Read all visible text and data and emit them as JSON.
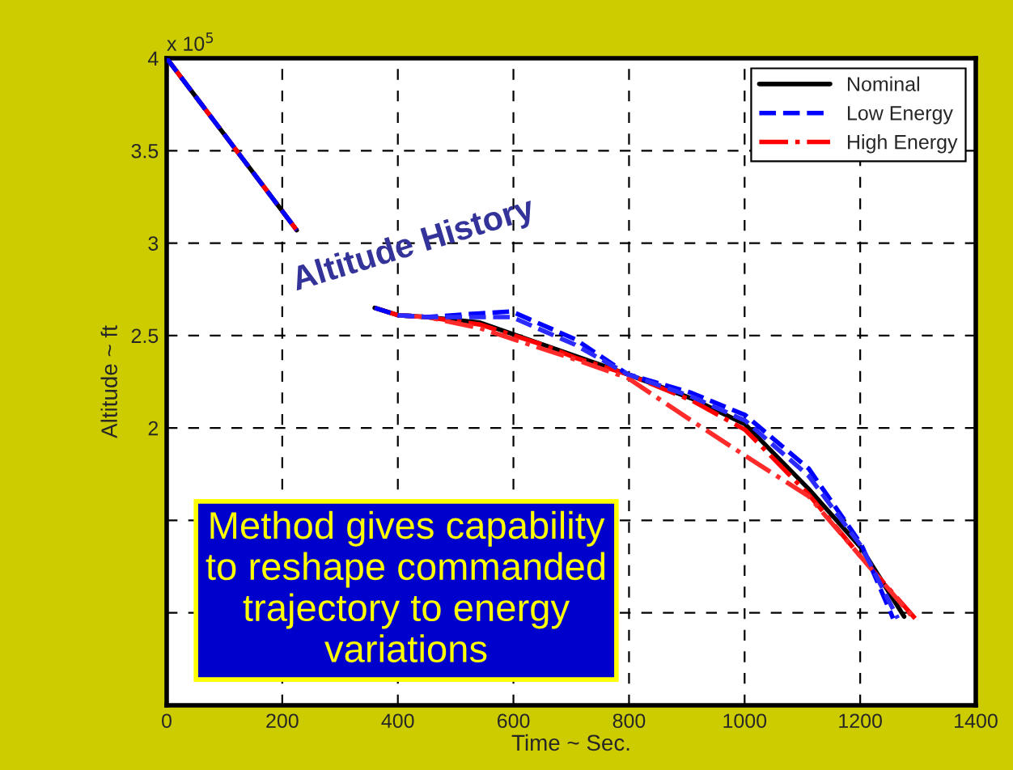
{
  "chart_data": {
    "type": "line",
    "xlabel": "Time ~ Sec.",
    "ylabel": "Altitude ~ ft",
    "xlim": [
      0,
      1400
    ],
    "xticks": [
      0,
      200,
      400,
      600,
      800,
      1000,
      1200,
      1400
    ],
    "ylim": [
      0.5,
      4
    ],
    "yticks": [
      {
        "value": 0.5,
        "label": null
      },
      {
        "value": 1,
        "label": null
      },
      {
        "value": 1.5,
        "label": null
      },
      2,
      2.5,
      3,
      3.5,
      4
    ],
    "grid": true,
    "legend": "top right",
    "annotations": [
      "x 10$^{5}$",
      "Altitude History",
      "Method gives capability to reshape commanded trajectory to energy variations"
    ],
    "series": [
      {
        "name": "Nominal",
        "color": "#000000",
        "line_style": "solid",
        "x": [
          0,
          225,
          300,
          360,
          400,
          450,
          542,
          707,
          798,
          908,
          1001,
          1111,
          1202,
          1276
        ],
        "values": [
          4,
          3.07,
          null,
          2.65,
          2.61,
          2.6,
          2.57,
          2.39,
          2.29,
          2.16,
          2.02,
          1.67,
          1.35,
          0.98
        ]
      },
      {
        "name": "Low Energy",
        "color": "#0000ff",
        "line_style": "dashed",
        "x": [
          0,
          225,
          300,
          360,
          400,
          450,
          542,
          597,
          707,
          798,
          908,
          1001,
          1111,
          1202,
          1257
        ],
        "values": [
          4,
          3.07,
          null,
          2.65,
          2.61,
          2.6,
          2.62,
          2.63,
          2.48,
          2.29,
          2.19,
          2.07,
          1.78,
          1.37,
          0.97
        ]
      },
      {
        "color": "#2b2bff",
        "line_style": "dashed",
        "x": [
          400,
          450,
          542,
          597,
          707,
          798,
          908,
          1001,
          1111,
          1202,
          1265
        ],
        "values": [
          2.61,
          2.6,
          2.6,
          2.6,
          2.45,
          2.29,
          2.17,
          2.04,
          1.74,
          1.36,
          0.97
        ]
      },
      {
        "name": "High Energy",
        "color": "#ff0000",
        "line_style": "dashdot",
        "x": [
          0,
          225,
          300,
          360,
          400,
          450,
          542,
          650,
          707,
          798,
          908,
          1001,
          1111,
          1202,
          1295
        ],
        "values": [
          4,
          3.07,
          null,
          2.65,
          2.61,
          2.6,
          2.56,
          2.45,
          2.38,
          2.29,
          2.15,
          1.99,
          1.64,
          1.3,
          0.97
        ]
      },
      {
        "color": "#ff2b2b",
        "line_style": "dashdot",
        "x": [
          400,
          450,
          542,
          707,
          798,
          908,
          1001,
          1111,
          1202,
          1293
        ],
        "values": [
          2.61,
          2.6,
          2.54,
          2.37,
          2.27,
          2.04,
          1.85,
          1.63,
          1.3,
          0.97
        ]
      }
    ]
  }
}
